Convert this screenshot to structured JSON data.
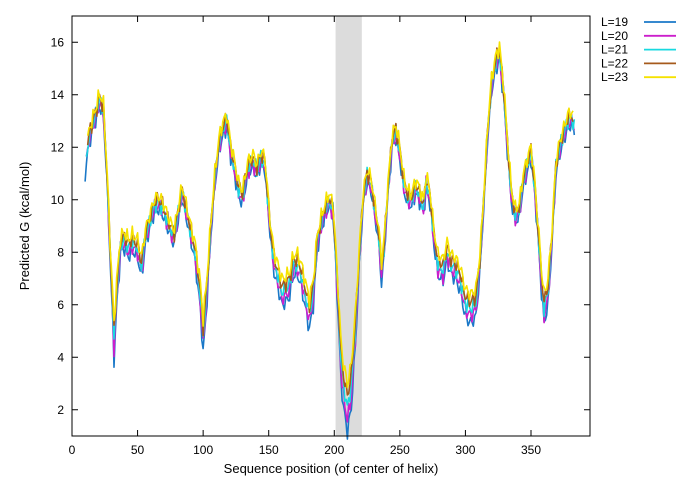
{
  "chart_data": {
    "type": "line",
    "title": "",
    "xlabel": "Sequence position (of center of helix)",
    "ylabel": "Predicted  G (kcal/mol)",
    "xlim": [
      0,
      395
    ],
    "ylim": [
      1,
      17
    ],
    "xticks": [
      0,
      50,
      100,
      150,
      200,
      250,
      300,
      350
    ],
    "yticks": [
      2,
      4,
      6,
      8,
      10,
      12,
      14,
      16
    ],
    "grid": false,
    "legend": "outside-right-top",
    "highlight_band": {
      "x0": 201,
      "x1": 221,
      "color": "#dcdcdc"
    },
    "base_profile": [
      [
        10,
        11.2
      ],
      [
        13,
        12.4
      ],
      [
        16,
        12.9
      ],
      [
        19,
        13.4
      ],
      [
        21,
        13.8
      ],
      [
        24,
        13.4
      ],
      [
        27,
        10.6
      ],
      [
        29,
        8.2
      ],
      [
        31,
        6.0
      ],
      [
        32,
        4.8
      ],
      [
        34,
        6.5
      ],
      [
        37,
        8.3
      ],
      [
        40,
        8.5
      ],
      [
        43,
        8.2
      ],
      [
        46,
        8.4
      ],
      [
        50,
        8.2
      ],
      [
        53,
        7.5
      ],
      [
        56,
        8.6
      ],
      [
        60,
        9.3
      ],
      [
        63,
        9.8
      ],
      [
        66,
        9.9
      ],
      [
        69,
        9.7
      ],
      [
        72,
        9.3
      ],
      [
        75,
        8.9
      ],
      [
        78,
        8.6
      ],
      [
        80,
        9.2
      ],
      [
        84,
        10.3
      ],
      [
        87,
        9.6
      ],
      [
        90,
        8.9
      ],
      [
        94,
        8.0
      ],
      [
        98,
        6.4
      ],
      [
        100,
        5.0
      ],
      [
        103,
        6.8
      ],
      [
        106,
        9.0
      ],
      [
        109,
        10.8
      ],
      [
        112,
        12.1
      ],
      [
        115,
        12.7
      ],
      [
        118,
        13.0
      ],
      [
        121,
        11.9
      ],
      [
        124,
        11.2
      ],
      [
        127,
        10.4
      ],
      [
        130,
        10.1
      ],
      [
        134,
        11.2
      ],
      [
        138,
        11.5
      ],
      [
        141,
        11.1
      ],
      [
        144,
        11.6
      ],
      [
        147,
        11.4
      ],
      [
        151,
        9.0
      ],
      [
        154,
        7.7
      ],
      [
        157,
        7.2
      ],
      [
        160,
        6.6
      ],
      [
        163,
        6.7
      ],
      [
        166,
        6.9
      ],
      [
        169,
        7.6
      ],
      [
        172,
        7.6
      ],
      [
        175,
        7.2
      ],
      [
        178,
        6.5
      ],
      [
        181,
        5.8
      ],
      [
        184,
        6.6
      ],
      [
        187,
        8.4
      ],
      [
        190,
        9.1
      ],
      [
        193,
        9.6
      ],
      [
        196,
        10.0
      ],
      [
        199,
        9.6
      ],
      [
        201,
        8.0
      ],
      [
        203,
        6.2
      ],
      [
        205,
        4.2
      ],
      [
        207,
        3.2
      ],
      [
        210,
        2.4
      ],
      [
        213,
        3.2
      ],
      [
        216,
        5.2
      ],
      [
        219,
        7.8
      ],
      [
        222,
        10.0
      ],
      [
        225,
        10.9
      ],
      [
        228,
        10.6
      ],
      [
        231,
        9.6
      ],
      [
        234,
        8.6
      ],
      [
        236,
        7.3
      ],
      [
        238,
        8.2
      ],
      [
        241,
        10.4
      ],
      [
        244,
        12.2
      ],
      [
        247,
        12.6
      ],
      [
        250,
        11.8
      ],
      [
        253,
        10.6
      ],
      [
        256,
        10.1
      ],
      [
        259,
        10.0
      ],
      [
        262,
        10.5
      ],
      [
        265,
        10.2
      ],
      [
        268,
        9.7
      ],
      [
        270,
        10.7
      ],
      [
        273,
        10.1
      ],
      [
        276,
        8.6
      ],
      [
        279,
        7.6
      ],
      [
        283,
        7.4
      ],
      [
        286,
        8.1
      ],
      [
        289,
        7.6
      ],
      [
        292,
        7.5
      ],
      [
        296,
        7.1
      ],
      [
        300,
        6.2
      ],
      [
        304,
        6.0
      ],
      [
        308,
        6.2
      ],
      [
        311,
        7.6
      ],
      [
        314,
        10.0
      ],
      [
        317,
        12.6
      ],
      [
        320,
        14.4
      ],
      [
        323,
        15.2
      ],
      [
        326,
        15.6
      ],
      [
        329,
        14.2
      ],
      [
        332,
        12.1
      ],
      [
        335,
        10.2
      ],
      [
        338,
        9.4
      ],
      [
        341,
        9.6
      ],
      [
        344,
        10.7
      ],
      [
        347,
        11.3
      ],
      [
        350,
        11.8
      ],
      [
        353,
        10.4
      ],
      [
        356,
        8.4
      ],
      [
        358,
        7.0
      ],
      [
        360,
        6.0
      ],
      [
        363,
        6.6
      ],
      [
        366,
        8.6
      ],
      [
        369,
        11.2
      ],
      [
        372,
        12.0
      ],
      [
        375,
        12.5
      ],
      [
        378,
        13.0
      ],
      [
        381,
        13.1
      ],
      [
        383,
        12.9
      ]
    ],
    "series": [
      {
        "name": "L=19",
        "color": "#1a78c8",
        "shift": -0.25,
        "dip_scale": 1.15,
        "x_start": 10,
        "x_end": 383
      },
      {
        "name": "L=20",
        "color": "#cc1ecc",
        "shift": -0.12,
        "dip_scale": 1.1,
        "x_start": 11,
        "x_end": 383
      },
      {
        "name": "L=21",
        "color": "#18d9e0",
        "shift": 0.0,
        "dip_scale": 1.05,
        "x_start": 11,
        "x_end": 383
      },
      {
        "name": "L=22",
        "color": "#a65a1c",
        "shift": 0.12,
        "dip_scale": 1.0,
        "x_start": 12,
        "x_end": 382
      },
      {
        "name": "L=23",
        "color": "#f5e200",
        "shift": 0.25,
        "dip_scale": 0.95,
        "x_start": 12,
        "x_end": 382
      }
    ]
  }
}
